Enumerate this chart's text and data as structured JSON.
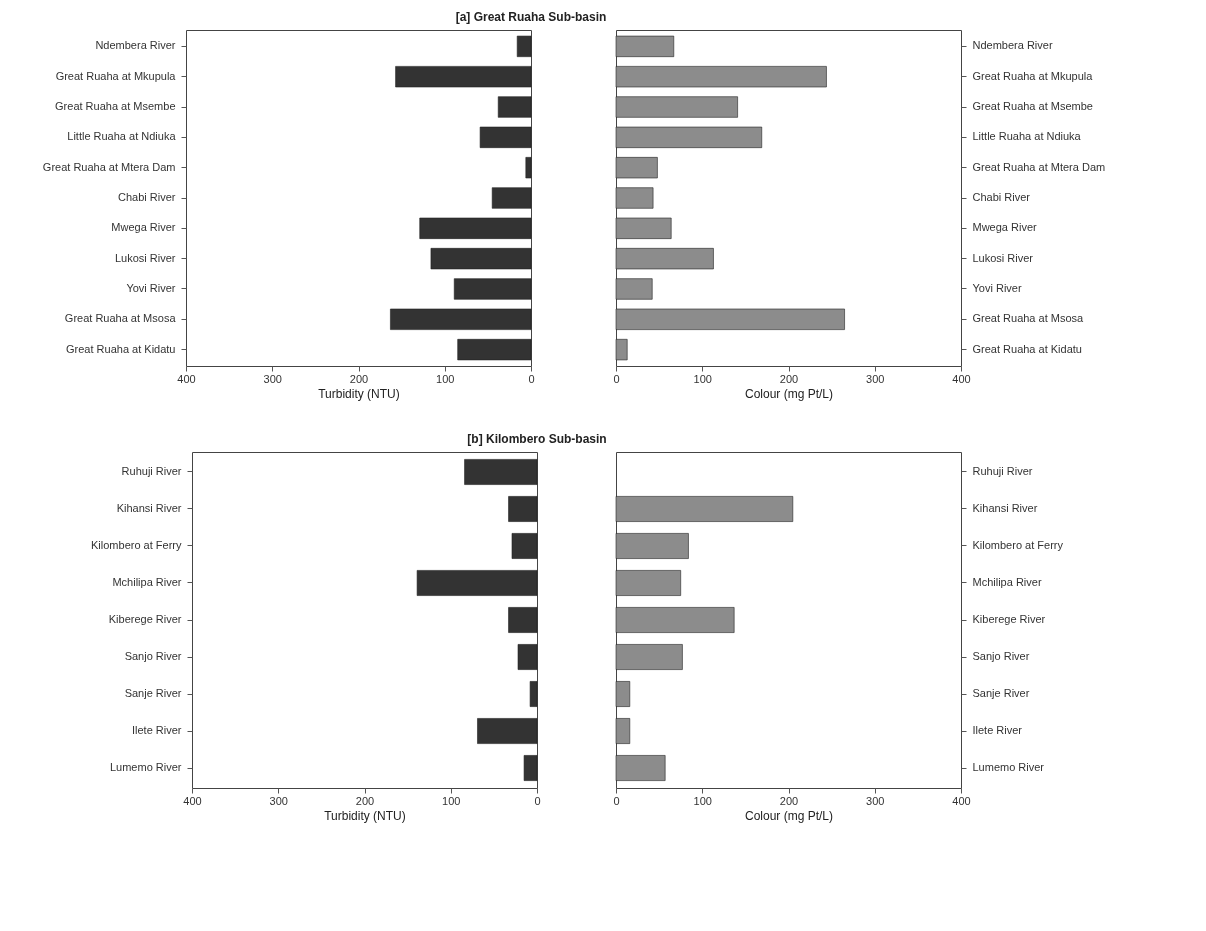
{
  "chart_data": [
    {
      "type": "bar",
      "orientation": "horizontal",
      "title": "[a] Great Ruaha Sub-basin",
      "xlabel": "Turbidity (NTU)",
      "categories": [
        "Ndembera River",
        "Great Ruaha at Mkupula",
        "Great Ruaha at Msembe",
        "Little Ruaha at Ndiuka",
        "Great Ruaha at Mtera Dam",
        "Chabi River",
        "Mwega River",
        "Lukosi River",
        "Yovi River",
        "Great Ruaha at Msosa",
        "Great Ruaha at Kidatu"
      ],
      "values": [
        16,
        157,
        38,
        59,
        6,
        45,
        129,
        116,
        89,
        163,
        85
      ],
      "color": "#333333",
      "xlim": [
        400,
        0
      ],
      "xticks": [
        400,
        300,
        200,
        100,
        0
      ],
      "grid": false
    },
    {
      "type": "bar",
      "orientation": "horizontal",
      "xlabel": "Colour (mg Pt/L)",
      "categories": [
        "Ndembera River",
        "Great Ruaha at Mkupula",
        "Great Ruaha at Msembe",
        "Little Ruaha at Ndiuka",
        "Great Ruaha at Mtera Dam",
        "Chabi River",
        "Mwega River",
        "Lukosi River",
        "Yovi River",
        "Great Ruaha at Msosa",
        "Great Ruaha at Kidatu"
      ],
      "values": [
        67,
        244,
        141,
        169,
        48,
        43,
        64,
        113,
        42,
        265,
        13
      ],
      "color": "#8c8c8c",
      "xlim": [
        0,
        400
      ],
      "xticks": [
        0,
        100,
        200,
        300,
        400
      ],
      "grid": false
    },
    {
      "type": "bar",
      "orientation": "horizontal",
      "title": "[b] Kilombero Sub-basin",
      "xlabel": "Turbidity (NTU)",
      "categories": [
        "Ruhuji River",
        "Kihansi River",
        "Kilombero at Ferry",
        "Mchilipa River",
        "Kiberege River",
        "Sanjo River",
        "Sanje River",
        "Ilete River",
        "Lumemo River"
      ],
      "values": [
        84,
        33,
        29,
        139,
        33,
        22,
        8,
        69,
        15
      ],
      "color": "#333333",
      "xlim": [
        400,
        0
      ],
      "xticks": [
        400,
        300,
        200,
        100,
        0
      ],
      "grid": false
    },
    {
      "type": "bar",
      "orientation": "horizontal",
      "xlabel": "Colour (mg Pt/L)",
      "categories": [
        "Ruhuji River",
        "Kihansi River",
        "Kilombero at Ferry",
        "Mchilipa River",
        "Kiberege River",
        "Sanjo River",
        "Sanje River",
        "Ilete River",
        "Lumemo River"
      ],
      "values": [
        null,
        205,
        84,
        75,
        137,
        77,
        16,
        16,
        57
      ],
      "color": "#8c8c8c",
      "xlim": [
        0,
        400
      ],
      "xticks": [
        0,
        100,
        200,
        300,
        400
      ],
      "grid": false
    }
  ]
}
